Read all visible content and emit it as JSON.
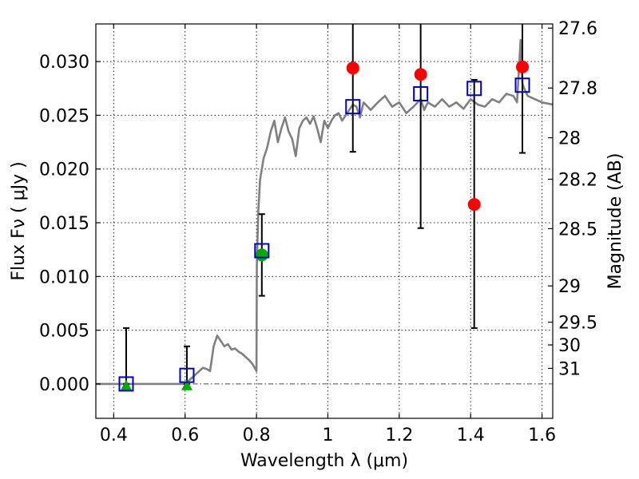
{
  "chart_data": {
    "type": "scatter",
    "xlabel": "Wavelength  λ (μm)",
    "ylabel": "Flux  Fν ( μJy )",
    "y2label": "Magnitude (AB)",
    "xlim": [
      0.35,
      1.63
    ],
    "ylim": [
      -0.0032,
      0.0335
    ],
    "grid": true,
    "x_ticks": [
      0.4,
      0.6,
      0.8,
      1.0,
      1.2,
      1.4,
      1.6
    ],
    "x_tick_labels": [
      "0.4",
      "0.6",
      "0.8",
      "1",
      "1.2",
      "1.4",
      "1.6"
    ],
    "y_ticks": [
      0.0,
      0.005,
      0.01,
      0.015,
      0.02,
      0.025,
      0.03
    ],
    "y_tick_labels": [
      "0.000",
      "0.005",
      "0.010",
      "0.015",
      "0.020",
      "0.025",
      "0.030"
    ],
    "y2_ticks": [
      {
        "label": "27.6",
        "flux": 0.03311
      },
      {
        "label": "27.8",
        "flux": 0.02754
      },
      {
        "label": "28",
        "flux": 0.02291
      },
      {
        "label": "28.2",
        "flux": 0.01905
      },
      {
        "label": "28.5",
        "flux": 0.01445
      },
      {
        "label": "29",
        "flux": 0.00912
      },
      {
        "label": "29.5",
        "flux": 0.00575
      },
      {
        "label": "30",
        "flux": 0.00363
      },
      {
        "label": "31",
        "flux": 0.00145
      }
    ],
    "colors": {
      "template": "#808080",
      "observed": "#ff0000",
      "upper_limit": "#00aa00",
      "model": "#0000cc",
      "errorbar": "#000000",
      "zero_line": "#555555"
    },
    "template_spectrum": {
      "name": "",
      "x": [
        0.35,
        0.6,
        0.62,
        0.64,
        0.65,
        0.66,
        0.67,
        0.68,
        0.69,
        0.7,
        0.71,
        0.72,
        0.73,
        0.74,
        0.75,
        0.76,
        0.77,
        0.78,
        0.79,
        0.8,
        0.801,
        0.805,
        0.81,
        0.82,
        0.83,
        0.84,
        0.85,
        0.86,
        0.87,
        0.88,
        0.89,
        0.9,
        0.91,
        0.92,
        0.93,
        0.94,
        0.95,
        0.96,
        0.97,
        0.98,
        0.99,
        1.0,
        1.01,
        1.02,
        1.03,
        1.04,
        1.05,
        1.06,
        1.07,
        1.08,
        1.09,
        1.1,
        1.12,
        1.14,
        1.15,
        1.16,
        1.18,
        1.2,
        1.22,
        1.24,
        1.26,
        1.27,
        1.28,
        1.3,
        1.32,
        1.34,
        1.36,
        1.38,
        1.4,
        1.42,
        1.44,
        1.46,
        1.48,
        1.5,
        1.52,
        1.53,
        1.54,
        1.545,
        1.55,
        1.56,
        1.58,
        1.6,
        1.63
      ],
      "y": [
        0.0,
        0.0,
        0.0006,
        0.0012,
        0.0015,
        0.0014,
        0.0012,
        0.0035,
        0.0045,
        0.004,
        0.0035,
        0.0037,
        0.0032,
        0.0033,
        0.003,
        0.0028,
        0.0025,
        0.0022,
        0.0018,
        0.0012,
        0.011,
        0.016,
        0.019,
        0.021,
        0.022,
        0.0235,
        0.0245,
        0.0225,
        0.0238,
        0.0248,
        0.0235,
        0.0228,
        0.0212,
        0.0238,
        0.0245,
        0.0248,
        0.0242,
        0.0249,
        0.0238,
        0.0225,
        0.0245,
        0.0238,
        0.0245,
        0.025,
        0.0252,
        0.0245,
        0.025,
        0.0255,
        0.026,
        0.0258,
        0.0248,
        0.0262,
        0.0255,
        0.0262,
        0.0265,
        0.0268,
        0.0258,
        0.0262,
        0.0252,
        0.0258,
        0.0265,
        0.0255,
        0.0262,
        0.0258,
        0.0265,
        0.0258,
        0.0262,
        0.0256,
        0.0265,
        0.026,
        0.0258,
        0.0265,
        0.0262,
        0.027,
        0.0268,
        0.0262,
        0.032,
        0.028,
        0.0275,
        0.0268,
        0.0265,
        0.0262,
        0.026
      ]
    },
    "series": [
      {
        "name": "",
        "marker": "circle",
        "color": "#ff0000",
        "points": [
          {
            "x": 1.07,
            "y": 0.0294
          },
          {
            "x": 1.26,
            "y": 0.0288
          },
          {
            "x": 1.41,
            "y": 0.0167
          },
          {
            "x": 1.545,
            "y": 0.0295
          }
        ]
      },
      {
        "name": "",
        "marker": "circle",
        "color": "#00aa00",
        "points": [
          {
            "x": 0.815,
            "y": 0.012
          }
        ]
      },
      {
        "name": "",
        "marker": "triangle",
        "color": "#00aa00",
        "points": [
          {
            "x": 0.435,
            "y": -0.0001
          },
          {
            "x": 0.605,
            "y": -0.0001
          }
        ]
      },
      {
        "name": "",
        "marker": "square",
        "color": "#0000cc",
        "points": [
          {
            "x": 0.435,
            "y": 0.0
          },
          {
            "x": 0.605,
            "y": 0.0008
          },
          {
            "x": 0.815,
            "y": 0.0124
          },
          {
            "x": 1.07,
            "y": 0.0258
          },
          {
            "x": 1.26,
            "y": 0.027
          },
          {
            "x": 1.41,
            "y": 0.0275
          },
          {
            "x": 1.545,
            "y": 0.0278
          }
        ]
      }
    ],
    "errorbars": [
      {
        "x": 0.435,
        "ylow": 0.0,
        "yhigh": 0.0052
      },
      {
        "x": 0.605,
        "ylow": 0.0,
        "yhigh": 0.0035
      },
      {
        "x": 0.815,
        "ylow": 0.0082,
        "yhigh": 0.0158
      },
      {
        "x": 1.07,
        "ylow": 0.0216,
        "yhigh": 0.0345
      },
      {
        "x": 1.26,
        "ylow": 0.0145,
        "yhigh": 0.0345
      },
      {
        "x": 1.41,
        "ylow": 0.0052,
        "yhigh": 0.0283
      },
      {
        "x": 1.545,
        "ylow": 0.0215,
        "yhigh": 0.0345
      }
    ]
  }
}
